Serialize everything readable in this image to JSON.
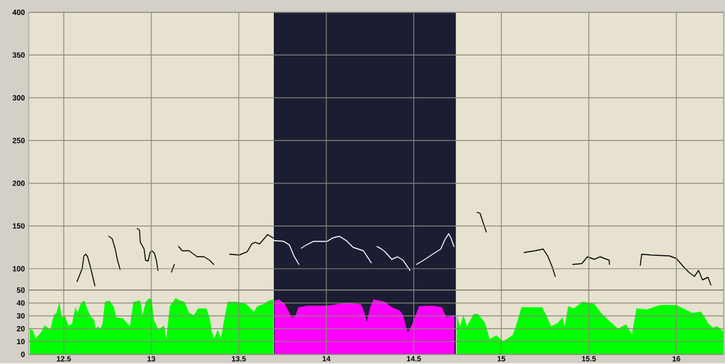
{
  "chart_data": [
    {
      "type": "line",
      "xlim": [
        12.3,
        16.27
      ],
      "ylim": [
        75,
        400
      ],
      "xticks": [
        12.5,
        13,
        13.5,
        14,
        14.5,
        15,
        15.5,
        16
      ],
      "yticks": [
        100,
        150,
        200,
        250,
        300,
        350,
        400
      ],
      "grid": true,
      "tick_labels": "y",
      "bands": [
        {
          "axis": "x",
          "from": 13.7,
          "to": 14.74,
          "color": "#1b1d33"
        }
      ],
      "series": [
        {
          "color": "#000000",
          "x": [
            12.576,
            12.605,
            12.615,
            12.626,
            12.636,
            12.651,
            12.678,
            12.72,
            12.757,
            12.777,
            12.794,
            12.807,
            12.822,
            12.87,
            12.92,
            12.933,
            12.937,
            12.946,
            12.959,
            12.967,
            12.982,
            12.993,
            13.004,
            13.018,
            13.029,
            13.038,
            13.08,
            13.115,
            13.132,
            13.145,
            13.156,
            13.177,
            13.216,
            13.262,
            13.301,
            13.333,
            13.357,
            13.4,
            13.448,
            13.502,
            13.548,
            13.574,
            13.593,
            13.619,
            13.665,
            13.697,
            14.3,
            14.862,
            14.878,
            14.894,
            14.914,
            15.02,
            15.131,
            15.193,
            15.239,
            15.265,
            15.291,
            15.308,
            15.36,
            15.408,
            15.46,
            15.492,
            15.531,
            15.564,
            15.616,
            15.618,
            15.7,
            15.794,
            15.802,
            15.856,
            15.96,
            16.0,
            16.038,
            16.071,
            16.103,
            16.127,
            16.149,
            16.181,
            16.197
          ],
          "values": [
            85,
            100,
            115,
            117,
            114,
            103,
            80,
            null,
            138,
            135,
            123,
            110,
            99,
            null,
            147,
            145,
            131,
            128,
            123,
            110,
            109,
            119,
            121,
            118,
            110,
            98,
            null,
            96,
            105,
            null,
            126,
            121,
            121,
            114,
            114,
            110,
            105,
            null,
            117,
            116,
            120,
            129,
            131,
            129,
            140,
            136,
            null,
            166,
            165,
            155,
            143,
            null,
            119,
            121,
            123,
            115,
            102,
            91,
            null,
            105,
            106,
            114,
            111,
            114,
            110,
            105,
            null,
            104,
            117,
            116,
            115,
            112,
            103,
            96,
            91,
            98,
            87,
            90,
            81
          ]
        },
        {
          "color": "#ffffff",
          "x": [
            13.698,
            13.757,
            13.789,
            13.815,
            13.844,
            13.85,
            13.857,
            13.887,
            13.926,
            14.004,
            14.036,
            14.075,
            14.114,
            14.153,
            14.212,
            14.257,
            14.27,
            14.29,
            14.309,
            14.335,
            14.374,
            14.407,
            14.439,
            14.478,
            14.5,
            14.515,
            14.556,
            14.608,
            14.654,
            14.68,
            14.699,
            14.712,
            14.729
          ],
          "values": [
            133,
            132,
            128,
            115,
            105,
            null,
            124,
            128,
            132,
            132,
            136,
            138,
            133,
            125,
            121,
            107,
            null,
            126,
            124,
            120,
            111,
            114,
            110,
            98,
            null,
            105,
            110,
            117,
            123,
            135,
            141,
            136,
            126
          ]
        }
      ]
    },
    {
      "type": "area",
      "xlim": [
        12.3,
        16.27
      ],
      "ylim": [
        0,
        50
      ],
      "xticks": [
        12.5,
        13,
        13.5,
        14,
        14.5,
        15,
        15.5,
        16
      ],
      "yticks": [
        0,
        10,
        20,
        30,
        40,
        50
      ],
      "grid": true,
      "bands": [
        {
          "axis": "x",
          "from": 13.7,
          "to": 14.74,
          "color": "#1b1d33"
        }
      ],
      "series": [
        {
          "color": "#00ff00",
          "x": [
            12.306,
            12.326,
            12.339,
            12.371,
            12.391,
            12.423,
            12.443,
            12.459,
            12.475,
            12.488,
            12.508,
            12.527,
            12.547,
            12.566,
            12.579,
            12.599,
            12.618,
            12.638,
            12.657,
            12.673,
            12.683,
            12.696,
            12.709,
            12.722,
            12.735,
            12.761,
            12.787,
            12.8,
            12.839,
            12.878,
            12.898,
            12.937,
            12.95,
            12.969,
            12.989,
            13.002,
            13.015,
            13.041,
            13.073,
            13.086,
            13.106,
            13.138,
            13.164,
            13.19,
            13.216,
            13.242,
            13.268,
            13.314,
            13.333,
            13.346,
            13.359,
            13.379,
            13.398,
            13.424,
            13.437,
            13.489,
            13.541,
            13.587,
            13.606,
            13.645,
            13.671,
            13.697
          ],
          "values": [
            20.0,
            18.2,
            12.1,
            17.4,
            22.6,
            19.1,
            30.5,
            32.6,
            41.0,
            28.8,
            29.6,
            22.6,
            23.5,
            36.7,
            32.3,
            40.2,
            41.9,
            34.0,
            28.8,
            27.0,
            20.0,
            21.8,
            20.0,
            24.4,
            41.0,
            41.9,
            36.7,
            28.8,
            27.9,
            21.8,
            41.0,
            41.9,
            30.5,
            41.0,
            43.7,
            42.8,
            27.0,
            19.1,
            22.6,
            12.1,
            37.5,
            43.7,
            41.9,
            41.0,
            32.3,
            30.5,
            35.8,
            35.8,
            28.8,
            17.4,
            12.1,
            19.1,
            13.0,
            32.3,
            41.0,
            41.0,
            39.3,
            33.2,
            37.5,
            39.3,
            41.9,
            42.8
          ]
        },
        {
          "color": "#ff00ff",
          "x": [
            13.704,
            13.731,
            13.763,
            13.802,
            13.822,
            13.841,
            13.893,
            14.004,
            14.114,
            14.199,
            14.218,
            14.231,
            14.251,
            14.27,
            14.335,
            14.374,
            14.42,
            14.439,
            14.465,
            14.491,
            14.53,
            14.608,
            14.66,
            14.686,
            14.732
          ],
          "values": [
            41.9,
            42.8,
            39.3,
            28.8,
            29.6,
            36.7,
            37.9,
            37.9,
            40.2,
            38.9,
            32.3,
            25.2,
            36.7,
            42.8,
            41.0,
            36.7,
            34.0,
            30.5,
            16.8,
            23.5,
            37.5,
            37.9,
            36.7,
            28.8,
            30.5
          ]
        },
        {
          "color": "#00ff00",
          "x": [
            14.745,
            14.764,
            14.784,
            14.803,
            14.842,
            14.868,
            14.907,
            14.933,
            14.972,
            15.011,
            15.063,
            15.083,
            15.115,
            15.232,
            15.258,
            15.284,
            15.323,
            15.349,
            15.362,
            15.382,
            15.414,
            15.466,
            15.531,
            15.57,
            15.609,
            15.668,
            15.713,
            15.746,
            15.772,
            15.83,
            15.908,
            15.999,
            16.051,
            16.09,
            16.142,
            16.181,
            16.207,
            16.233,
            16.268
          ],
          "values": [
            30.5,
            21.8,
            30.5,
            21.8,
            31.4,
            31.4,
            24.4,
            12.1,
            14.7,
            10.4,
            14.7,
            21.8,
            36.7,
            36.7,
            30.5,
            21.8,
            24.4,
            28.8,
            21.8,
            37.5,
            35.8,
            41.1,
            39.3,
            32.3,
            27.0,
            20.0,
            23.5,
            15.6,
            35.8,
            34.9,
            38.4,
            38.4,
            34.9,
            32.3,
            33.2,
            24.4,
            20.9,
            21.8,
            18.2
          ]
        }
      ]
    }
  ]
}
